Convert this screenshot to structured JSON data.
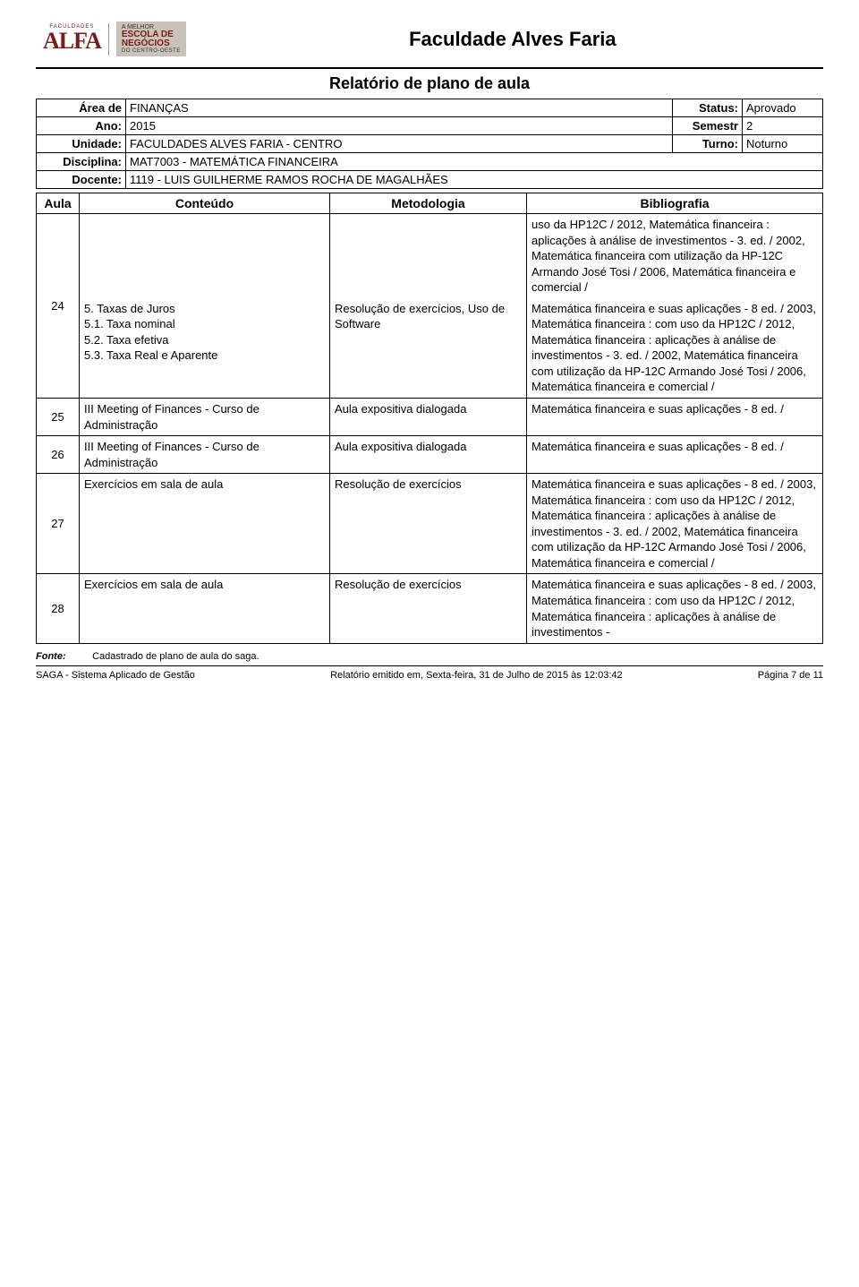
{
  "header": {
    "logo_sup": "FACULDADES",
    "logo_main": "ALFA",
    "badge_top": "A MELHOR",
    "badge_mid1": "ESCOLA DE",
    "badge_mid2": "NEGÓCIOS",
    "badge_bot": "DO CENTRO-OESTE",
    "page_title": "Faculdade Alves Faria"
  },
  "report": {
    "title": "Relatório de plano de aula",
    "meta": {
      "area_label": "Área de",
      "area_value": "FINANÇAS",
      "status_label": "Status:",
      "status_value": "Aprovado",
      "ano_label": "Ano:",
      "ano_value": "2015",
      "semestr_label": "Semestr",
      "semestr_value": "2",
      "unidade_label": "Unidade:",
      "unidade_value": "FACULDADES ALVES FARIA - CENTRO",
      "turno_label": "Turno:",
      "turno_value": "Noturno",
      "disciplina_label": "Disciplina:",
      "disciplina_value": "MAT7003 - MATEMÁTICA FINANCEIRA",
      "docente_label": "Docente:",
      "docente_value": "1119 - LUIS GUILHERME RAMOS ROCHA DE MAGALHÃES"
    },
    "columns": {
      "aula": "Aula",
      "conteudo": "Conteúdo",
      "metodologia": "Metodologia",
      "bibliografia": "Bibliografia"
    },
    "bib_top": "uso da HP12C / 2012, Matemática financeira : aplicações à análise de investimentos - 3. ed. / 2002, Matemática financeira com utilização da HP-12C Armando José Tosi / 2006, Matemática financeira e comercial /",
    "rows": [
      {
        "aula": "24",
        "conteudo": "5. Taxas de Juros\n5.1. Taxa nominal\n5.2. Taxa efetiva\n5.3. Taxa Real e Aparente",
        "metodologia": "Resolução de exercícios, Uso de Software",
        "bibliografia": "Matemática financeira e suas aplicações - 8 ed. / 2003, Matemática financeira : com uso da HP12C / 2012, Matemática financeira : aplicações à análise de investimentos - 3. ed. / 2002, Matemática financeira com utilização da HP-12C Armando José Tosi / 2006, Matemática financeira e comercial /"
      },
      {
        "aula": "25",
        "conteudo": "III Meeting of Finances - Curso de Administração",
        "metodologia": "Aula expositiva dialogada",
        "bibliografia": "Matemática financeira e suas aplicações - 8 ed. /"
      },
      {
        "aula": "26",
        "conteudo": "III Meeting of Finances - Curso de Administração",
        "metodologia": "Aula expositiva dialogada",
        "bibliografia": "Matemática financeira e suas aplicações - 8 ed. /"
      },
      {
        "aula": "27",
        "conteudo": "Exercícios em sala de aula",
        "metodologia": "Resolução de exercícios",
        "bibliografia": "Matemática financeira e suas aplicações - 8 ed. / 2003, Matemática financeira : com uso da HP12C / 2012, Matemática financeira : aplicações à análise de investimentos - 3. ed. / 2002, Matemática financeira com utilização da HP-12C Armando José Tosi / 2006, Matemática financeira e comercial /"
      },
      {
        "aula": "28",
        "conteudo": "Exercícios em sala de aula",
        "metodologia": "Resolução de exercícios",
        "bibliografia": "Matemática financeira e suas aplicações - 8 ed. / 2003, Matemática financeira : com uso da HP12C / 2012, Matemática financeira : aplicações à análise de investimentos -"
      }
    ]
  },
  "footer": {
    "fonte_label": "Fonte:",
    "fonte_value": "Cadastrado de plano de aula do saga.",
    "left": "SAGA - Sistema Aplicado de Gestão",
    "center": "Relatório emitido em, Sexta-feira, 31 de Julho de 2015 às 12:03:42",
    "right": "Página 7 de  11"
  }
}
